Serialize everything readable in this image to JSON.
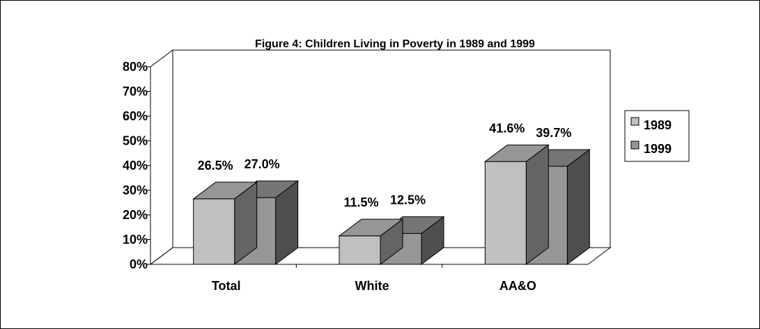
{
  "chart_data": {
    "type": "bar",
    "title": "Figure 4: Children Living in Poverty in 1989 and 1999",
    "categories": [
      "Total",
      "White",
      "AA&O"
    ],
    "series": [
      {
        "name": "1989",
        "values": [
          26.5,
          11.5,
          41.6
        ],
        "color": "#c0c0c0"
      },
      {
        "name": "1999",
        "values": [
          27.0,
          12.5,
          39.7
        ],
        "color": "#969696"
      }
    ],
    "data_labels": [
      [
        "26.5%",
        "11.5%",
        "41.6%"
      ],
      [
        "27.0%",
        "12.5%",
        "39.7%"
      ]
    ],
    "yticks": [
      "0%",
      "10%",
      "20%",
      "30%",
      "40%",
      "50%",
      "60%",
      "70%",
      "80%"
    ],
    "ylim": [
      0,
      80
    ],
    "grid": false,
    "legend_position": "right",
    "three_d": true
  }
}
